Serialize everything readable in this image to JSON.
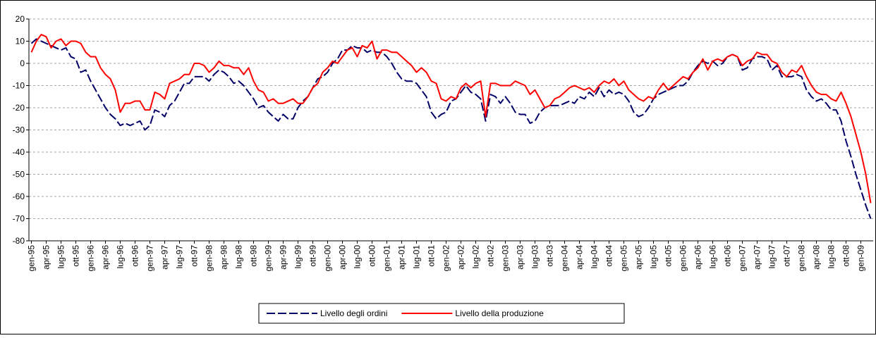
{
  "chart_data": {
    "type": "line",
    "categories": [
      "gen-95",
      null,
      null,
      "apr-95",
      null,
      null,
      "lug-95",
      null,
      null,
      "ott-95",
      null,
      null,
      "gen-96",
      null,
      null,
      "apr-96",
      null,
      null,
      "lug-96",
      null,
      null,
      "ott-96",
      null,
      null,
      "gen-97",
      null,
      null,
      "apr-97",
      null,
      null,
      "lug-97",
      null,
      null,
      "ott-97",
      null,
      null,
      "gen-98",
      null,
      null,
      "apr-98",
      null,
      null,
      "lug-98",
      null,
      null,
      "ott-98",
      null,
      null,
      "gen-99",
      null,
      null,
      "apr-99",
      null,
      null,
      "lug-99",
      null,
      null,
      "ott-99",
      null,
      null,
      "gen-00",
      null,
      null,
      "apr-00",
      null,
      null,
      "lug-00",
      null,
      null,
      "ott-00",
      null,
      null,
      "gen-01",
      null,
      null,
      "apr-01",
      null,
      null,
      "lug-01",
      null,
      null,
      "ott-01",
      null,
      null,
      "gen-02",
      null,
      null,
      "apr-02",
      null,
      null,
      "lug-02",
      null,
      null,
      "ott-02",
      null,
      null,
      "gen-03",
      null,
      null,
      "apr-03",
      null,
      null,
      "lug-03",
      null,
      null,
      "ott-03",
      null,
      null,
      "gen-04",
      null,
      null,
      "apr-04",
      null,
      null,
      "lug-04",
      null,
      null,
      "ott-04",
      null,
      null,
      "gen-05",
      null,
      null,
      "apr-05",
      null,
      null,
      "lug-05",
      null,
      null,
      "ott-05",
      null,
      null,
      "gen-06",
      null,
      null,
      "apr-06",
      null,
      null,
      "lug-06",
      null,
      null,
      "ott-06",
      null,
      null,
      "gen-07",
      null,
      null,
      "apr-07",
      null,
      null,
      "lug-07",
      null,
      null,
      "ott-07",
      null,
      null,
      "gen-08",
      null,
      null,
      "apr-08",
      null,
      null,
      "lug-08",
      null,
      null,
      "ott-08",
      null,
      null,
      "gen-09",
      null,
      null
    ],
    "series": [
      {
        "name": "Livello degli ordini",
        "color": "#000066",
        "dash": true,
        "values": [
          9,
          11,
          10,
          9,
          8,
          7,
          6,
          7,
          3,
          2,
          -4,
          -3,
          -8,
          -12,
          -16,
          -20,
          -23,
          -25,
          -28,
          -27,
          -28,
          -27,
          -26,
          -30,
          -28,
          -21,
          -22,
          -24,
          -19,
          -17,
          -13,
          -9,
          -9,
          -6,
          -6,
          -6,
          -8,
          -5,
          -3,
          -4,
          -6,
          -9,
          -8,
          -10,
          -13,
          -16,
          -20,
          -19,
          -22,
          -24,
          -26,
          -23,
          -25,
          -25,
          -20,
          -17,
          -15,
          -11,
          -7,
          -6,
          -4,
          0,
          2,
          6,
          6,
          8,
          7,
          7,
          5,
          6,
          5,
          5,
          3,
          0,
          -4,
          -7,
          -8,
          -8,
          -9,
          -12,
          -15,
          -22,
          -25,
          -23,
          -22,
          -17,
          -16,
          -13,
          -10,
          -13,
          -14,
          -16,
          -26,
          -14,
          -15,
          -18,
          -15,
          -18,
          -22,
          -23,
          -23,
          -27,
          -26,
          -22,
          -20,
          -19,
          -19,
          -19,
          -18,
          -17,
          -18,
          -15,
          -16,
          -13,
          -15,
          -11,
          -15,
          -12,
          -14,
          -13,
          -14,
          -17,
          -22,
          -24,
          -23,
          -20,
          -16,
          -14,
          -13,
          -12,
          -11,
          -10,
          -10,
          -8,
          -4,
          -1,
          1,
          0,
          1,
          -1,
          0,
          3,
          4,
          3,
          -3,
          -2,
          2,
          3,
          3,
          2,
          -3,
          -1,
          -6,
          -6,
          -6,
          -5,
          -6,
          -12,
          -15,
          -17,
          -16,
          -18,
          -21,
          -21,
          -26,
          -35,
          -42,
          -50,
          -57,
          -64,
          -70
        ]
      },
      {
        "name": "Livello della produzione",
        "color": "#ff0000",
        "dash": false,
        "values": [
          5,
          10,
          13,
          12,
          7,
          10,
          11,
          8,
          10,
          10,
          9,
          5,
          3,
          3,
          -2,
          -5,
          -7,
          -12,
          -22,
          -18,
          -18,
          -17,
          -17,
          -21,
          -21,
          -13,
          -14,
          -16,
          -9,
          -8,
          -7,
          -5,
          -5,
          0,
          0,
          -1,
          -4,
          -2,
          1,
          -1,
          -1,
          -2,
          -2,
          -5,
          -2,
          -8,
          -12,
          -13,
          -17,
          -16,
          -18,
          -18,
          -17,
          -16,
          -18,
          -18,
          -15,
          -11,
          -9,
          -4,
          -2,
          1,
          0,
          3,
          6,
          7,
          3,
          8,
          7,
          10,
          2,
          6,
          6,
          5,
          5,
          3,
          1,
          -1,
          -4,
          -2,
          -4,
          -8,
          -9,
          -16,
          -17,
          -15,
          -16,
          -11,
          -9,
          -11,
          -9,
          -8,
          -24,
          -9,
          -9,
          -10,
          -10,
          -10,
          -8,
          -9,
          -10,
          -14,
          -12,
          -16,
          -20,
          -19,
          -16,
          -15,
          -13,
          -11,
          -10,
          -11,
          -12,
          -11,
          -13,
          -10,
          -8,
          -9,
          -7,
          -10,
          -8,
          -12,
          -14,
          -16,
          -17,
          -15,
          -16,
          -12,
          -9,
          -12,
          -10,
          -8,
          -6,
          -7,
          -4,
          -2,
          2,
          -3,
          1,
          2,
          1,
          3,
          4,
          3,
          -1,
          1,
          2,
          5,
          4,
          4,
          1,
          0,
          -4,
          -6,
          -3,
          -4,
          -1,
          -6,
          -10,
          -13,
          -14,
          -14,
          -16,
          -17,
          -13,
          -18,
          -24,
          -32,
          -40,
          -50,
          -63
        ]
      }
    ],
    "ylim": [
      -80,
      20
    ],
    "yticks": [
      -80,
      -70,
      -60,
      -50,
      -40,
      -30,
      -20,
      -10,
      0,
      10,
      20
    ],
    "grid": true
  }
}
